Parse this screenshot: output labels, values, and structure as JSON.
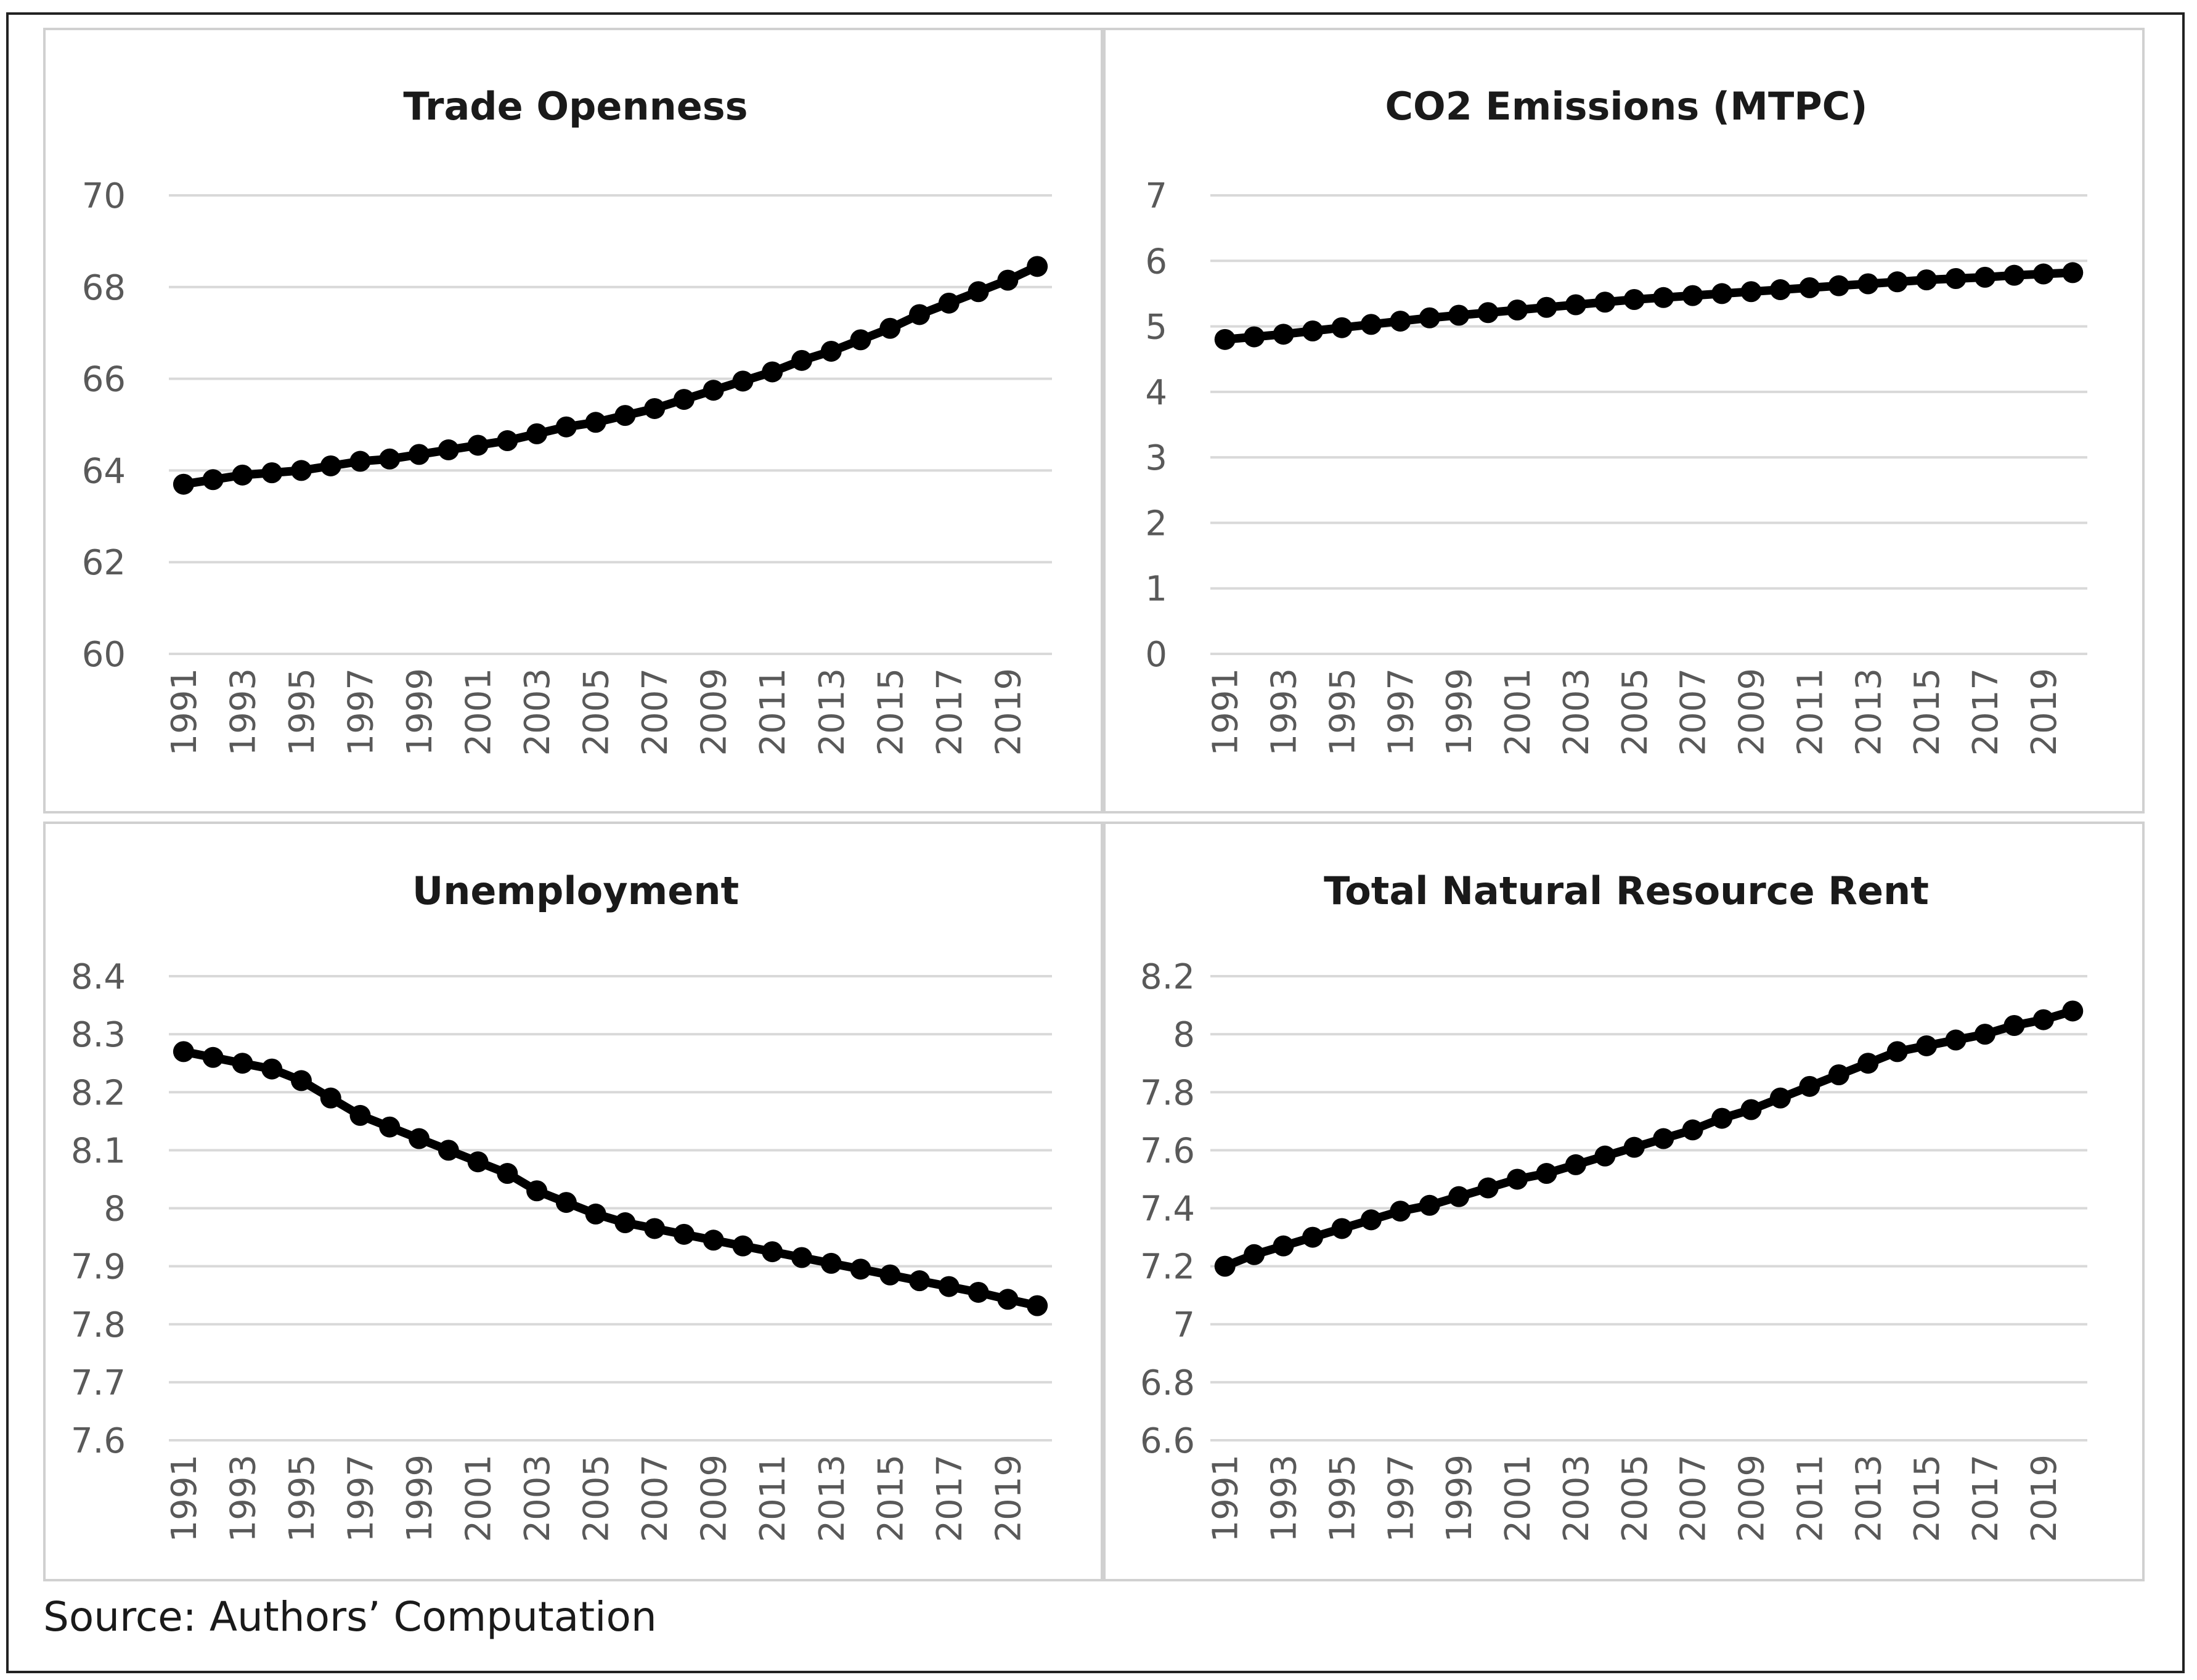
{
  "source_note": "Source: Authors’ Computation",
  "chart_data": [
    {
      "type": "line",
      "title": "Trade Openness",
      "xlabel": "",
      "ylabel": "",
      "ylim": [
        60,
        70
      ],
      "yticks": [
        "60",
        "62",
        "64",
        "66",
        "68",
        "70"
      ],
      "grid": true,
      "x_tick_labels": [
        "1991",
        "1993",
        "1995",
        "1997",
        "1999",
        "2001",
        "2003",
        "2005",
        "2007",
        "2009",
        "2011",
        "2013",
        "2015",
        "2017",
        "2019"
      ],
      "x": [
        1991,
        1992,
        1993,
        1994,
        1995,
        1996,
        1997,
        1998,
        1999,
        2000,
        2001,
        2002,
        2003,
        2004,
        2005,
        2006,
        2007,
        2008,
        2009,
        2010,
        2011,
        2012,
        2013,
        2014,
        2015,
        2016,
        2017,
        2018,
        2019,
        2020
      ],
      "series": [
        {
          "name": "Trade Openness",
          "values": [
            63.7,
            63.8,
            63.9,
            63.95,
            64.0,
            64.1,
            64.2,
            64.25,
            64.35,
            64.45,
            64.55,
            64.65,
            64.8,
            64.95,
            65.05,
            65.2,
            65.35,
            65.55,
            65.75,
            65.95,
            66.15,
            66.4,
            66.6,
            66.85,
            67.1,
            67.4,
            67.65,
            67.9,
            68.15,
            68.45
          ]
        }
      ]
    },
    {
      "type": "line",
      "title": "CO2 Emissions (MTPC)",
      "xlabel": "",
      "ylabel": "",
      "ylim": [
        0,
        7
      ],
      "yticks": [
        "0",
        "1",
        "2",
        "3",
        "4",
        "5",
        "6",
        "7"
      ],
      "grid": true,
      "x_tick_labels": [
        "1991",
        "1993",
        "1995",
        "1997",
        "1999",
        "2001",
        "2003",
        "2005",
        "2007",
        "2009",
        "2011",
        "2013",
        "2015",
        "2017",
        "2019"
      ],
      "x": [
        1991,
        1992,
        1993,
        1994,
        1995,
        1996,
        1997,
        1998,
        1999,
        2000,
        2001,
        2002,
        2003,
        2004,
        2005,
        2006,
        2007,
        2008,
        2009,
        2010,
        2011,
        2012,
        2013,
        2014,
        2015,
        2016,
        2017,
        2018,
        2019,
        2020
      ],
      "series": [
        {
          "name": "CO2 Emissions (MTPC)",
          "values": [
            4.8,
            4.84,
            4.88,
            4.93,
            4.98,
            5.03,
            5.08,
            5.13,
            5.17,
            5.21,
            5.25,
            5.29,
            5.33,
            5.37,
            5.41,
            5.44,
            5.47,
            5.5,
            5.53,
            5.56,
            5.59,
            5.62,
            5.65,
            5.68,
            5.71,
            5.73,
            5.75,
            5.78,
            5.8,
            5.82
          ]
        }
      ]
    },
    {
      "type": "line",
      "title": "Unemployment",
      "xlabel": "",
      "ylabel": "",
      "ylim": [
        7.6,
        8.4
      ],
      "yticks": [
        "7.6",
        "7.7",
        "7.8",
        "7.9",
        "8",
        "8.1",
        "8.2",
        "8.3",
        "8.4"
      ],
      "grid": true,
      "x_tick_labels": [
        "1991",
        "1993",
        "1995",
        "1997",
        "1999",
        "2001",
        "2003",
        "2005",
        "2007",
        "2009",
        "2011",
        "2013",
        "2015",
        "2017",
        "2019"
      ],
      "x": [
        1991,
        1992,
        1993,
        1994,
        1995,
        1996,
        1997,
        1998,
        1999,
        2000,
        2001,
        2002,
        2003,
        2004,
        2005,
        2006,
        2007,
        2008,
        2009,
        2010,
        2011,
        2012,
        2013,
        2014,
        2015,
        2016,
        2017,
        2018,
        2019,
        2020
      ],
      "series": [
        {
          "name": "Unemployment",
          "values": [
            8.27,
            8.26,
            8.25,
            8.24,
            8.22,
            8.19,
            8.16,
            8.14,
            8.12,
            8.1,
            8.08,
            8.06,
            8.03,
            8.01,
            7.99,
            7.975,
            7.965,
            7.955,
            7.945,
            7.935,
            7.925,
            7.915,
            7.905,
            7.895,
            7.885,
            7.875,
            7.865,
            7.855,
            7.843,
            7.832
          ]
        }
      ]
    },
    {
      "type": "line",
      "title": "Total Natural Resource Rent",
      "xlabel": "",
      "ylabel": "",
      "ylim": [
        6.6,
        8.2
      ],
      "yticks": [
        "6.6",
        "6.8",
        "7",
        "7.2",
        "7.4",
        "7.6",
        "7.8",
        "8",
        "8.2"
      ],
      "grid": true,
      "x_tick_labels": [
        "1991",
        "1993",
        "1995",
        "1997",
        "1999",
        "2001",
        "2003",
        "2005",
        "2007",
        "2009",
        "2011",
        "2013",
        "2015",
        "2017",
        "2019"
      ],
      "x": [
        1991,
        1992,
        1993,
        1994,
        1995,
        1996,
        1997,
        1998,
        1999,
        2000,
        2001,
        2002,
        2003,
        2004,
        2005,
        2006,
        2007,
        2008,
        2009,
        2010,
        2011,
        2012,
        2013,
        2014,
        2015,
        2016,
        2017,
        2018,
        2019,
        2020
      ],
      "series": [
        {
          "name": "Total Natural Resource Rent",
          "values": [
            7.2,
            7.24,
            7.27,
            7.3,
            7.33,
            7.36,
            7.39,
            7.41,
            7.44,
            7.47,
            7.5,
            7.52,
            7.55,
            7.58,
            7.61,
            7.64,
            7.67,
            7.71,
            7.74,
            7.78,
            7.82,
            7.86,
            7.9,
            7.94,
            7.96,
            7.98,
            8.0,
            8.03,
            8.05,
            8.08
          ]
        }
      ]
    }
  ]
}
